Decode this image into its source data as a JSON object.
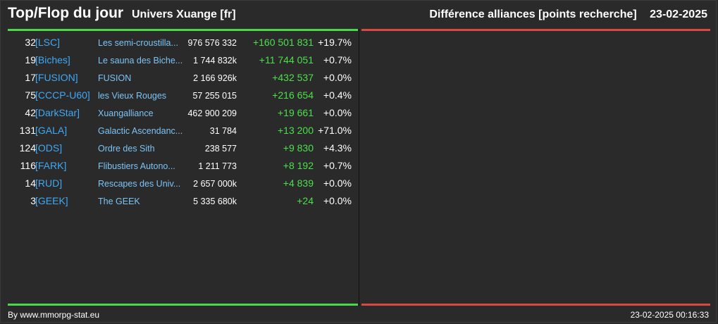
{
  "header": {
    "title": "Top/Flop du jour",
    "universe": "Univers Xuange [fr]",
    "category": "Différence alliances [points recherche]",
    "date": "23-02-2025"
  },
  "colors": {
    "background": "#2a2a2a",
    "top_accent": "#4bd84b",
    "flop_accent": "#d84a40",
    "tag": "#3fa9f5",
    "name": "#7cc4f5",
    "gain": "#4be04b"
  },
  "rows": [
    {
      "rank": "32",
      "tag": "[LSC]",
      "name": "Les semi-croustilla...",
      "points": "976 576 332",
      "delta": "+160 501 831",
      "pct": "+19.7%"
    },
    {
      "rank": "19",
      "tag": "[Biches]",
      "name": "Le sauna des Biche...",
      "points": "1 744 832k",
      "delta": "+11 744 051",
      "pct": "+0.7%"
    },
    {
      "rank": "17",
      "tag": "[FUSION]",
      "name": "FUSION",
      "points": "2 166 926k",
      "delta": "+432 537",
      "pct": "+0.0%"
    },
    {
      "rank": "75",
      "tag": "[CCCP-U60]",
      "name": "les Vieux Rouges",
      "points": "57 255 015",
      "delta": "+216 654",
      "pct": "+0.4%"
    },
    {
      "rank": "42",
      "tag": "[DarkStar]",
      "name": "Xuangalliance",
      "points": "462 900 209",
      "delta": "+19 661",
      "pct": "+0.0%"
    },
    {
      "rank": "131",
      "tag": "[GALA]",
      "name": "Galactic Ascendanc...",
      "points": "31 784",
      "delta": "+13 200",
      "pct": "+71.0%"
    },
    {
      "rank": "124",
      "tag": "[ODS]",
      "name": "Ordre des Sith",
      "points": "238 577",
      "delta": "+9 830",
      "pct": "+4.3%"
    },
    {
      "rank": "116",
      "tag": "[FARK]",
      "name": "Flibustiers Autono...",
      "points": "1 211 773",
      "delta": "+8 192",
      "pct": "+0.7%"
    },
    {
      "rank": "14",
      "tag": "[RUD]",
      "name": "Rescapes des Univ...",
      "points": "2 657 000k",
      "delta": "+4 839",
      "pct": "+0.0%"
    },
    {
      "rank": "3",
      "tag": "[GEEK]",
      "name": "The GEEK",
      "points": "5 335 680k",
      "delta": "+24",
      "pct": "+0.0%"
    }
  ],
  "footer": {
    "credit": "By www.mmorpg-stat.eu",
    "timestamp": "23-02-2025 00:16:33"
  }
}
